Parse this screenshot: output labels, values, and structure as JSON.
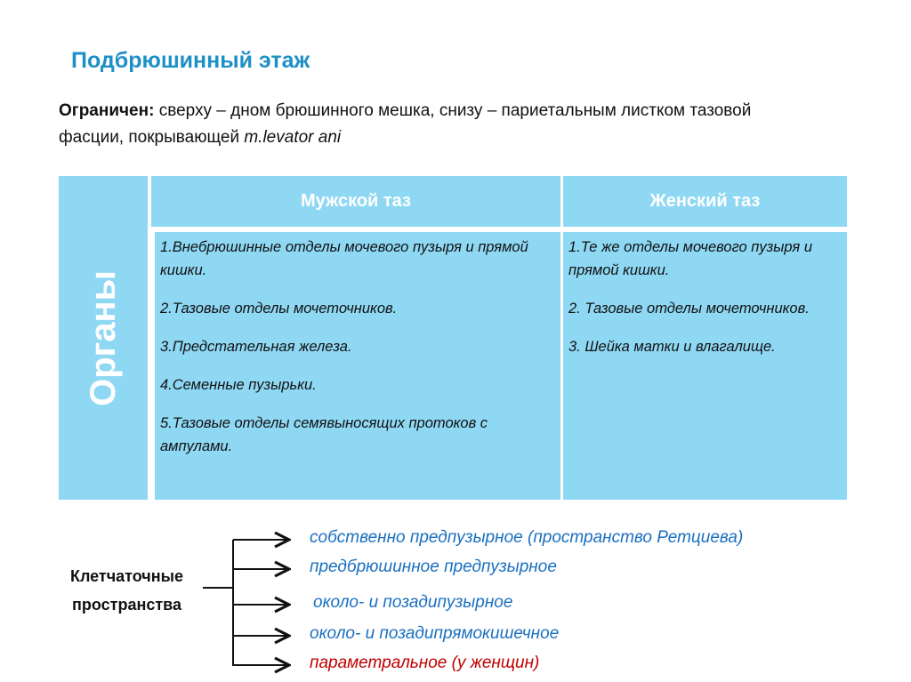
{
  "title": "Подбрюшинный этаж",
  "subtitle": {
    "bold": "Ограничен:",
    "text": " сверху – дном брюшинного мешка, снизу – париетальным листком тазовой фасции, покрывающей ",
    "italic": "m.levator ani"
  },
  "table": {
    "row_header": "Органы",
    "columns": [
      "Мужской таз",
      "Женский таз"
    ],
    "male": [
      "1.Внебрюшинные отделы мочевого пузыря и прямой кишки.",
      "2.Тазовые отделы мочеточников.",
      "3.Предстательная железа.",
      "4.Семенные пузырьки.",
      "5.Тазовые отделы семявыносящих протоков с ампулами."
    ],
    "female": [
      "1.Те же отделы мочевого пузыря и прямой кишки.",
      "2. Тазовые отделы мочеточников.",
      "3. Шейка матки и влагалище."
    ]
  },
  "spaces": {
    "label": "Клетчаточные пространства",
    "items": [
      {
        "text": "собственно предпузырное (пространство Ретциева)",
        "color": "#1a6fc0"
      },
      {
        "text": "предбрюшинное предпузырное",
        "color": "#1a6fc0"
      },
      {
        "text": "около- и позадипузырное",
        "color": "#1a6fc0"
      },
      {
        "text": "около- и позадипрямокишечное",
        "color": "#1a6fc0"
      },
      {
        "text": "параметральное (у женщин)",
        "color": "#c00000"
      }
    ]
  },
  "colors": {
    "table_fill": "#8fd8f4",
    "title": "#1e90c8"
  }
}
